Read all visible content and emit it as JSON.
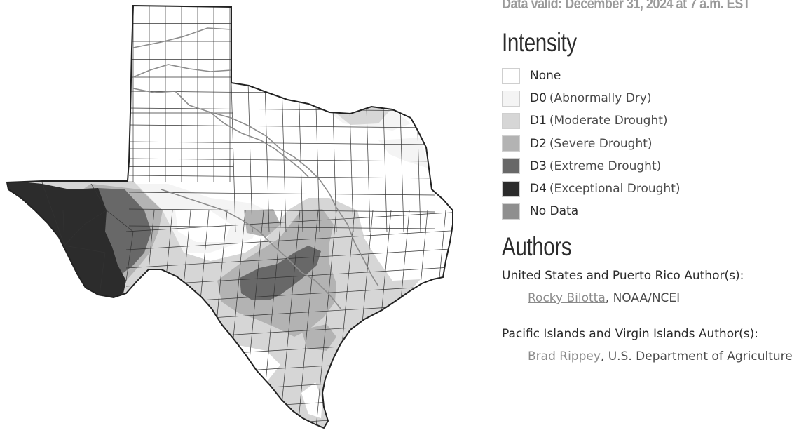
{
  "valid_text": "Data valid: December 31, 2024 at 7 a.m. EST",
  "intensity": {
    "heading": "Intensity",
    "items": [
      {
        "code": "None",
        "desc": "",
        "color": "#ffffff"
      },
      {
        "code": "D0",
        "desc": "(Abnormally Dry)",
        "color": "#f4f4f4"
      },
      {
        "code": "D1",
        "desc": "(Moderate Drought)",
        "color": "#d6d6d6"
      },
      {
        "code": "D2",
        "desc": "(Severe Drought)",
        "color": "#b3b3b3"
      },
      {
        "code": "D3",
        "desc": "(Extreme Drought)",
        "color": "#686868"
      },
      {
        "code": "D4",
        "desc": "(Exceptional Drought)",
        "color": "#2c2c2c"
      },
      {
        "code": "No Data",
        "desc": "",
        "color": "#8f8f8f"
      }
    ]
  },
  "authors": {
    "heading": "Authors",
    "groups": [
      {
        "label": "United States and Puerto Rico Author(s):",
        "name": "Rocky Bilotta",
        "org": ", NOAA/NCEI"
      },
      {
        "label": "Pacific Islands and Virgin Islands Author(s):",
        "name": "Brad Rippey",
        "org": ", U.S. Department of Agriculture"
      }
    ]
  },
  "map": {
    "region": "Texas",
    "colors": {
      "outline": "#222222",
      "county_lines": "#333333",
      "rivers": "#8c8c8c",
      "none": "#ffffff",
      "d0": "#f4f4f4",
      "d1": "#d6d6d6",
      "d2": "#b3b3b3",
      "d3": "#686868",
      "d4": "#2c2c2c"
    }
  }
}
